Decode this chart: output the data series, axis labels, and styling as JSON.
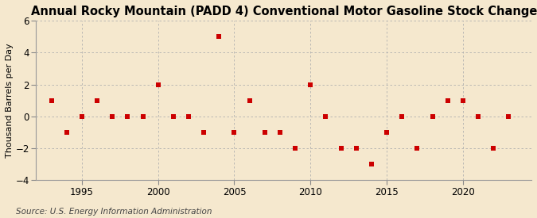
{
  "title": "Annual Rocky Mountain (PADD 4) Conventional Motor Gasoline Stock Change",
  "ylabel": "Thousand Barrels per Day",
  "source": "Source: U.S. Energy Information Administration",
  "years": [
    1993,
    1994,
    1995,
    1996,
    1997,
    1998,
    1999,
    2000,
    2001,
    2002,
    2003,
    2004,
    2005,
    2006,
    2007,
    2008,
    2009,
    2010,
    2011,
    2012,
    2013,
    2014,
    2015,
    2016,
    2017,
    2018,
    2019,
    2020,
    2021,
    2022,
    2023
  ],
  "values": [
    1.0,
    -1.0,
    0.0,
    1.0,
    0.0,
    0.0,
    0.0,
    2.0,
    0.0,
    0.0,
    -1.0,
    5.0,
    -1.0,
    1.0,
    -1.0,
    -1.0,
    -2.0,
    2.0,
    0.0,
    -2.0,
    -2.0,
    -3.0,
    -1.0,
    0.0,
    -2.0,
    0.0,
    1.0,
    1.0,
    0.0,
    -2.0,
    0.0
  ],
  "marker_color": "#cc0000",
  "marker_size": 25,
  "background_color": "#f5e8ce",
  "grid_color": "#b0b0b0",
  "ylim": [
    -4,
    6
  ],
  "yticks": [
    -4,
    -2,
    0,
    2,
    4,
    6
  ],
  "xlim": [
    1992.0,
    2024.5
  ],
  "xticks": [
    1995,
    2000,
    2005,
    2010,
    2015,
    2020
  ],
  "title_fontsize": 10.5,
  "ylabel_fontsize": 8,
  "tick_fontsize": 8.5,
  "source_fontsize": 7.5
}
